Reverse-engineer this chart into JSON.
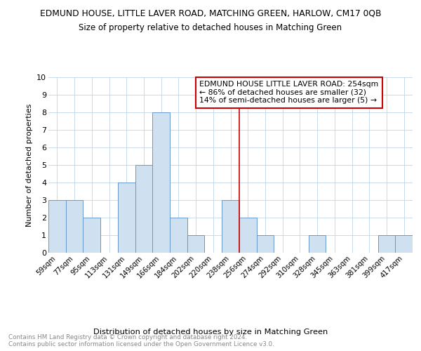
{
  "title": "EDMUND HOUSE, LITTLE LAVER ROAD, MATCHING GREEN, HARLOW, CM17 0QB",
  "subtitle": "Size of property relative to detached houses in Matching Green",
  "xlabel": "Distribution of detached houses by size in Matching Green",
  "ylabel": "Number of detached properties",
  "bar_labels": [
    "59sqm",
    "77sqm",
    "95sqm",
    "113sqm",
    "131sqm",
    "149sqm",
    "166sqm",
    "184sqm",
    "202sqm",
    "220sqm",
    "238sqm",
    "256sqm",
    "274sqm",
    "292sqm",
    "310sqm",
    "328sqm",
    "345sqm",
    "363sqm",
    "381sqm",
    "399sqm",
    "417sqm"
  ],
  "bar_heights": [
    3,
    3,
    2,
    0,
    4,
    5,
    8,
    2,
    1,
    0,
    3,
    2,
    1,
    0,
    0,
    1,
    0,
    0,
    0,
    1,
    1
  ],
  "bar_color": "#cfe0f0",
  "bar_edgecolor": "#6699cc",
  "ylim": [
    0,
    10
  ],
  "yticks": [
    0,
    1,
    2,
    3,
    4,
    5,
    6,
    7,
    8,
    9,
    10
  ],
  "vline_x": 10.5,
  "vline_color": "#cc0000",
  "annotation_text": "EDMUND HOUSE LITTLE LAVER ROAD: 254sqm\n← 86% of detached houses are smaller (32)\n14% of semi-detached houses are larger (5) →",
  "footer_text": "Contains HM Land Registry data © Crown copyright and database right 2024.\nContains public sector information licensed under the Open Government Licence v3.0.",
  "background_color": "#ffffff",
  "grid_color": "#c0d4e8"
}
